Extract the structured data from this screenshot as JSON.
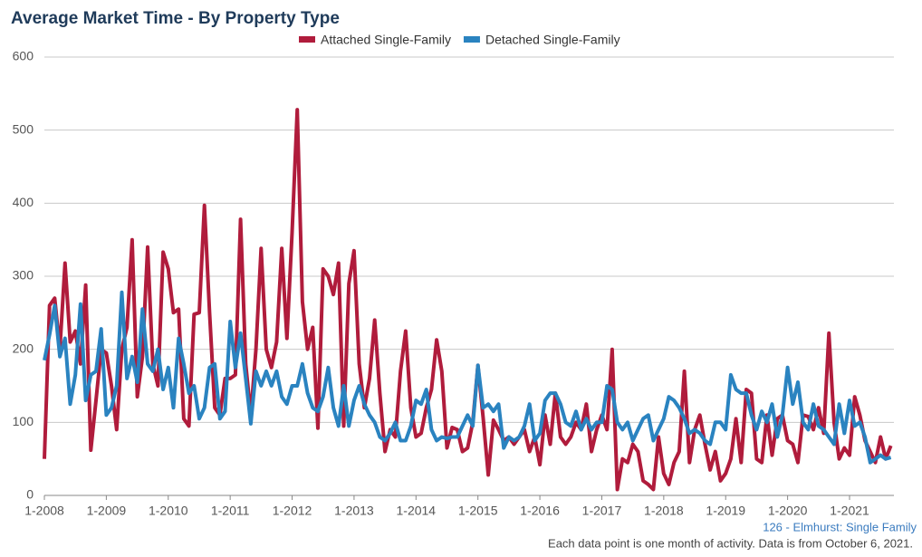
{
  "chart_data": {
    "type": "line",
    "title": "Average Market Time - By Property Type",
    "subtitle": "126 - Elmhurst: Single Family",
    "note": "Each data point is one month of activity. Data is from October 6, 2021.",
    "categories": [
      "1-2008",
      null,
      null,
      null,
      null,
      null,
      null,
      null,
      null,
      null,
      null,
      null,
      "1-2009",
      null,
      null,
      null,
      null,
      null,
      null,
      null,
      null,
      null,
      null,
      null,
      "1-2010",
      null,
      null,
      null,
      null,
      null,
      null,
      null,
      null,
      null,
      null,
      null,
      "1-2011",
      null,
      null,
      null,
      null,
      null,
      null,
      null,
      null,
      null,
      null,
      null,
      "1-2012",
      null,
      null,
      null,
      null,
      null,
      null,
      null,
      null,
      null,
      null,
      null,
      "1-2013",
      null,
      null,
      null,
      null,
      null,
      null,
      null,
      null,
      null,
      null,
      null,
      "1-2014",
      null,
      null,
      null,
      null,
      null,
      null,
      null,
      null,
      null,
      null,
      null,
      "1-2015",
      null,
      null,
      null,
      null,
      null,
      null,
      null,
      null,
      null,
      null,
      null,
      "1-2016",
      null,
      null,
      null,
      null,
      null,
      null,
      null,
      null,
      null,
      null,
      null,
      "1-2017",
      null,
      null,
      null,
      null,
      null,
      null,
      null,
      null,
      null,
      null,
      null,
      "1-2018",
      null,
      null,
      null,
      null,
      null,
      null,
      null,
      null,
      null,
      null,
      null,
      "1-2019",
      null,
      null,
      null,
      null,
      null,
      null,
      null,
      null,
      null,
      null,
      null,
      "1-2020",
      null,
      null,
      null,
      null,
      null,
      null,
      null,
      null,
      null,
      null,
      null,
      "1-2021",
      null,
      null,
      null,
      null,
      null,
      null,
      null,
      null
    ],
    "series": [
      {
        "name": "Attached Single-Family",
        "color": "#b01c3c",
        "values": [
          50,
          260,
          270,
          200,
          318,
          210,
          225,
          180,
          288,
          62,
          130,
          200,
          195,
          150,
          90,
          200,
          230,
          350,
          135,
          190,
          340,
          180,
          150,
          333,
          310,
          250,
          255,
          105,
          95,
          248,
          250,
          397,
          250,
          120,
          110,
          160,
          160,
          165,
          378,
          180,
          110,
          200,
          338,
          200,
          175,
          210,
          338,
          215,
          360,
          528,
          265,
          200,
          230,
          92,
          310,
          300,
          275,
          318,
          95,
          290,
          335,
          180,
          120,
          160,
          240,
          140,
          60,
          90,
          80,
          170,
          225,
          120,
          80,
          85,
          120,
          145,
          213,
          170,
          65,
          93,
          90,
          60,
          65,
          100,
          178,
          107,
          28,
          103,
          90,
          75,
          80,
          70,
          80,
          90,
          60,
          80,
          42,
          110,
          70,
          140,
          80,
          70,
          80,
          100,
          90,
          125,
          60,
          90,
          110,
          90,
          200,
          8,
          50,
          45,
          70,
          60,
          20,
          15,
          8,
          80,
          30,
          15,
          45,
          60,
          170,
          45,
          90,
          110,
          70,
          35,
          60,
          20,
          30,
          50,
          105,
          45,
          145,
          140,
          50,
          45,
          110,
          55,
          105,
          110,
          75,
          70,
          45,
          110,
          108,
          90,
          120,
          85,
          222,
          100,
          50,
          65,
          55,
          135,
          110,
          75,
          60,
          45,
          80,
          50,
          68
        ]
      },
      {
        "name": "Detached Single-Family",
        "color": "#2a83c0",
        "values": [
          185,
          220,
          260,
          190,
          215,
          125,
          165,
          262,
          130,
          165,
          170,
          228,
          110,
          120,
          150,
          278,
          160,
          190,
          155,
          255,
          180,
          170,
          200,
          145,
          175,
          120,
          215,
          180,
          140,
          150,
          105,
          120,
          175,
          180,
          105,
          115,
          238,
          175,
          222,
          160,
          98,
          170,
          150,
          170,
          150,
          170,
          135,
          125,
          150,
          150,
          180,
          140,
          120,
          115,
          135,
          175,
          120,
          95,
          150,
          95,
          130,
          150,
          125,
          110,
          100,
          80,
          75,
          85,
          100,
          75,
          75,
          95,
          130,
          125,
          145,
          90,
          75,
          80,
          78,
          80,
          80,
          95,
          110,
          95,
          178,
          120,
          125,
          115,
          125,
          65,
          80,
          75,
          80,
          95,
          125,
          75,
          85,
          130,
          140,
          140,
          125,
          100,
          95,
          115,
          90,
          105,
          90,
          100,
          100,
          150,
          145,
          100,
          90,
          100,
          75,
          90,
          105,
          110,
          75,
          90,
          105,
          135,
          130,
          120,
          105,
          85,
          90,
          85,
          75,
          70,
          100,
          100,
          90,
          165,
          145,
          140,
          140,
          110,
          90,
          115,
          100,
          125,
          80,
          110,
          175,
          125,
          155,
          100,
          90,
          125,
          95,
          90,
          80,
          70,
          125,
          85,
          130,
          95,
          100,
          80,
          45,
          50,
          55,
          50,
          52
        ]
      }
    ],
    "ylim": [
      0,
      600
    ],
    "yticks": [
      0,
      100,
      200,
      300,
      400,
      500,
      600
    ],
    "grid": true
  }
}
